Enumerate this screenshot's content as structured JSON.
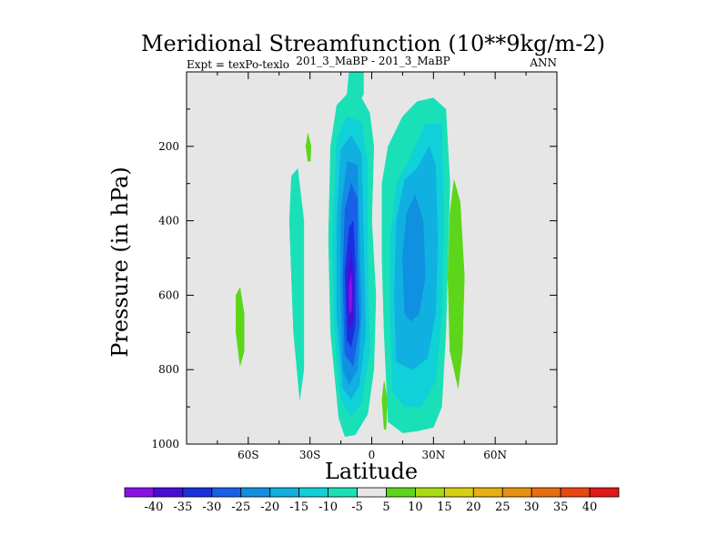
{
  "chart_data": {
    "type": "contour",
    "title": "Meridional Streamfunction (10**9kg/m-2)",
    "subtitle_left": "Expt = texPo-texlo",
    "subtitle_center": "201_3_MaBP - 201_3_MaBP",
    "subtitle_right": "ANN",
    "xlabel": "Latitude",
    "ylabel": "Pressure (in hPa)",
    "xlim": [
      -90,
      90
    ],
    "ylim": [
      0,
      1000
    ],
    "x_ticks": [
      {
        "value": -60,
        "label": "60S"
      },
      {
        "value": -30,
        "label": "30S"
      },
      {
        "value": 0,
        "label": "0"
      },
      {
        "value": 30,
        "label": "30N"
      },
      {
        "value": 60,
        "label": "60N"
      }
    ],
    "y_ticks": [
      {
        "value": 200,
        "label": "200"
      },
      {
        "value": 400,
        "label": "400"
      },
      {
        "value": 600,
        "label": "600"
      },
      {
        "value": 800,
        "label": "800"
      },
      {
        "value": 1000,
        "label": "1000"
      }
    ],
    "colorbar": {
      "colors": [
        "#8a10e8",
        "#4a0cd8",
        "#1a30e0",
        "#1860e8",
        "#1090e0",
        "#10b0e0",
        "#10d0d8",
        "#1ae0b8",
        "#e6e6e6",
        "#5cd61a",
        "#a8dc10",
        "#d6d010",
        "#e8b010",
        "#e89010",
        "#e86c10",
        "#e84810",
        "#e01818"
      ],
      "labels": [
        "-40",
        "-35",
        "-30",
        "-25",
        "-20",
        "-15",
        "-10",
        "-5",
        "5",
        "10",
        "15",
        "20",
        "25",
        "30",
        "35",
        "40"
      ]
    },
    "regions": [
      {
        "name": "tropical-negative-cell-outer",
        "color": "#1ae0b8",
        "points": [
          [
            -16,
            930
          ],
          [
            -20,
            700
          ],
          [
            -21,
            450
          ],
          [
            -20,
            200
          ],
          [
            -17,
            90
          ],
          [
            -12,
            60
          ],
          [
            -5,
            70
          ],
          [
            -1,
            110
          ],
          [
            1,
            200
          ],
          [
            0,
            400
          ],
          [
            2,
            600
          ],
          [
            1,
            800
          ],
          [
            -2,
            920
          ],
          [
            -8,
            975
          ],
          [
            -13,
            980
          ]
        ]
      },
      {
        "name": "tropical-negative-cell-l2",
        "color": "#10d0d8",
        "points": [
          [
            -15,
            880
          ],
          [
            -18,
            700
          ],
          [
            -19,
            450
          ],
          [
            -17,
            180
          ],
          [
            -12,
            120
          ],
          [
            -5,
            135
          ],
          [
            -2,
            250
          ],
          [
            -2,
            500
          ],
          [
            -1,
            750
          ],
          [
            -5,
            890
          ],
          [
            -10,
            925
          ]
        ]
      },
      {
        "name": "tropical-negative-cell-l3",
        "color": "#10b0e0",
        "points": [
          [
            -14,
            850
          ],
          [
            -17,
            650
          ],
          [
            -17,
            400
          ],
          [
            -15,
            210
          ],
          [
            -10,
            170
          ],
          [
            -5,
            220
          ],
          [
            -4,
            450
          ],
          [
            -3,
            700
          ],
          [
            -6,
            840
          ],
          [
            -10,
            880
          ]
        ]
      },
      {
        "name": "tropical-negative-cell-l4",
        "color": "#1090e0",
        "points": [
          [
            -14,
            800
          ],
          [
            -15,
            600
          ],
          [
            -15,
            380
          ],
          [
            -12,
            240
          ],
          [
            -7,
            250
          ],
          [
            -6,
            450
          ],
          [
            -5,
            650
          ],
          [
            -7,
            800
          ],
          [
            -11,
            840
          ]
        ]
      },
      {
        "name": "tropical-negative-cell-l5",
        "color": "#1860e8",
        "points": [
          [
            -13,
            760
          ],
          [
            -14,
            560
          ],
          [
            -13,
            370
          ],
          [
            -10,
            300
          ],
          [
            -7,
            340
          ],
          [
            -7,
            500
          ],
          [
            -6,
            680
          ],
          [
            -9,
            790
          ]
        ]
      },
      {
        "name": "tropical-negative-cell-l6",
        "color": "#1a30e0",
        "points": [
          [
            -12,
            720
          ],
          [
            -13,
            540
          ],
          [
            -11,
            420
          ],
          [
            -9,
            400
          ],
          [
            -8,
            520
          ],
          [
            -8,
            680
          ],
          [
            -10,
            740
          ]
        ]
      },
      {
        "name": "tropical-negative-cell-l7",
        "color": "#4a0cd8",
        "points": [
          [
            -11,
            690
          ],
          [
            -12,
            560
          ],
          [
            -10,
            480
          ],
          [
            -9,
            560
          ],
          [
            -9,
            670
          ]
        ]
      },
      {
        "name": "tropical-negative-cell-core",
        "color": "#8a10e8",
        "points": [
          [
            -10.8,
            650
          ],
          [
            -11.2,
            580
          ],
          [
            -10,
            540
          ],
          [
            -9.6,
            590
          ],
          [
            -9.8,
            640
          ]
        ]
      },
      {
        "name": "upper-cap-negative",
        "color": "#1ae0b8",
        "points": [
          [
            -12,
            60
          ],
          [
            -11,
            0
          ],
          [
            -4,
            0
          ],
          [
            -4,
            60
          ],
          [
            -6,
            80
          ]
        ]
      },
      {
        "name": "northern-negative-cell-outer",
        "color": "#1ae0b8",
        "points": [
          [
            8,
            940
          ],
          [
            6,
            700
          ],
          [
            5,
            500
          ],
          [
            5,
            300
          ],
          [
            8,
            200
          ],
          [
            15,
            120
          ],
          [
            22,
            80
          ],
          [
            30,
            70
          ],
          [
            36,
            100
          ],
          [
            38,
            300
          ],
          [
            37,
            500
          ],
          [
            36,
            700
          ],
          [
            34,
            900
          ],
          [
            30,
            955
          ],
          [
            22,
            965
          ],
          [
            15,
            970
          ]
        ]
      },
      {
        "name": "northern-negative-cell-l2",
        "color": "#10d0d8",
        "points": [
          [
            10,
            860
          ],
          [
            9,
            650
          ],
          [
            9,
            450
          ],
          [
            12,
            300
          ],
          [
            18,
            240
          ],
          [
            26,
            140
          ],
          [
            34,
            140
          ],
          [
            35,
            400
          ],
          [
            34,
            650
          ],
          [
            31,
            830
          ],
          [
            24,
            900
          ],
          [
            16,
            900
          ]
        ]
      },
      {
        "name": "northern-negative-cell-l3",
        "color": "#10b0e0",
        "points": [
          [
            12,
            780
          ],
          [
            11,
            600
          ],
          [
            12,
            400
          ],
          [
            16,
            290
          ],
          [
            22,
            260
          ],
          [
            28,
            200
          ],
          [
            31,
            250
          ],
          [
            32,
            450
          ],
          [
            31,
            650
          ],
          [
            27,
            770
          ],
          [
            20,
            800
          ]
        ]
      },
      {
        "name": "northern-negative-cell-l4",
        "color": "#1090e0",
        "points": [
          [
            16,
            650
          ],
          [
            15,
            500
          ],
          [
            17,
            380
          ],
          [
            21,
            330
          ],
          [
            25,
            400
          ],
          [
            26,
            550
          ],
          [
            23,
            650
          ],
          [
            19,
            670
          ]
        ]
      },
      {
        "name": "southern-negative-band",
        "color": "#1ae0b8",
        "points": [
          [
            -35,
            880
          ],
          [
            -38,
            700
          ],
          [
            -40,
            400
          ],
          [
            -39,
            280
          ],
          [
            -36,
            260
          ],
          [
            -33,
            400
          ],
          [
            -33,
            600
          ],
          [
            -33,
            800
          ]
        ]
      },
      {
        "name": "southern-positive-band",
        "color": "#5cd61a",
        "points": [
          [
            -64,
            790
          ],
          [
            -66,
            700
          ],
          [
            -66,
            600
          ],
          [
            -64,
            580
          ],
          [
            -62,
            650
          ],
          [
            -62,
            750
          ]
        ]
      },
      {
        "name": "northern-positive-band",
        "color": "#5cd61a",
        "points": [
          [
            42,
            850
          ],
          [
            38,
            750
          ],
          [
            37,
            550
          ],
          [
            38,
            380
          ],
          [
            40,
            290
          ],
          [
            43,
            350
          ],
          [
            45,
            550
          ],
          [
            44,
            750
          ]
        ]
      },
      {
        "name": "upper-positive-patch",
        "color": "#5cd61a",
        "points": [
          [
            -31,
            240
          ],
          [
            -32,
            200
          ],
          [
            -31,
            165
          ],
          [
            -29.5,
            200
          ],
          [
            -29.8,
            240
          ]
        ]
      },
      {
        "name": "lower-positive-patch",
        "color": "#5cd61a",
        "points": [
          [
            6,
            960
          ],
          [
            5,
            880
          ],
          [
            6,
            830
          ],
          [
            7.5,
            880
          ],
          [
            7,
            960
          ]
        ]
      }
    ]
  }
}
